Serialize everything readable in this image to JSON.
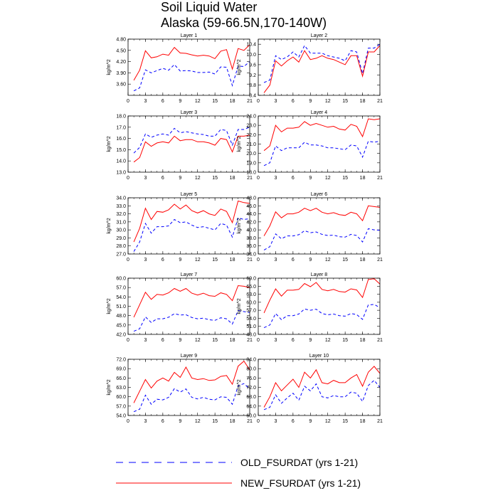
{
  "figure": {
    "title": "Soil Liquid Water",
    "subtitle": "Alaska (59-66.5N,170-140W)"
  },
  "legend": {
    "items": [
      {
        "label": "OLD_FSURDAT (yrs 1-21)",
        "color": "#0000ff",
        "dash": true
      },
      {
        "label": "NEW_FSURDAT (yrs 1-21)",
        "color": "#ff0000",
        "dash": false
      }
    ]
  },
  "chart_data": [
    {
      "type": "line",
      "title": "Layer 1",
      "ylabel": "kg/m^2",
      "x": [
        1,
        2,
        3,
        4,
        5,
        6,
        7,
        8,
        9,
        10,
        11,
        12,
        13,
        14,
        15,
        16,
        17,
        18,
        19,
        20,
        21
      ],
      "xlim": [
        0,
        21
      ],
      "xticks": [
        "0",
        "3",
        "6",
        "9",
        "12",
        "15",
        "18",
        "21"
      ],
      "ylim": [
        3.3,
        4.8
      ],
      "yticks": [
        "3.60",
        "3.90",
        "4.20",
        "4.50",
        "4.80"
      ],
      "series": [
        {
          "name": "OLD_FSURDAT (yrs 1-21)",
          "color": "#0000ff",
          "values": [
            3.42,
            3.5,
            3.98,
            3.9,
            3.96,
            4.02,
            3.97,
            4.12,
            3.95,
            3.96,
            3.95,
            3.91,
            3.91,
            3.92,
            3.87,
            4.06,
            4.05,
            3.56,
            4.08,
            4.07,
            4.2
          ]
        },
        {
          "name": "NEW_FSURDAT (yrs 1-21)",
          "color": "#ff0000",
          "values": [
            3.7,
            3.97,
            4.49,
            4.3,
            4.33,
            4.4,
            4.37,
            4.58,
            4.43,
            4.42,
            4.38,
            4.35,
            4.37,
            4.35,
            4.28,
            4.48,
            4.52,
            4.0,
            4.55,
            4.5,
            4.65
          ]
        }
      ]
    },
    {
      "type": "line",
      "title": "Layer 2",
      "ylabel": "kg/m^2",
      "x": [
        1,
        2,
        3,
        4,
        5,
        6,
        7,
        8,
        9,
        10,
        11,
        12,
        13,
        14,
        15,
        16,
        17,
        18,
        19,
        20,
        21
      ],
      "xlim": [
        0,
        21
      ],
      "xticks": [
        "0",
        "3",
        "6",
        "9",
        "12",
        "15",
        "18",
        "21"
      ],
      "ylim": [
        8.4,
        10.6
      ],
      "yticks": [
        "8.4",
        "8.8",
        "9.2",
        "9.6",
        "10.0",
        "10.4"
      ],
      "series": [
        {
          "name": "OLD_FSURDAT (yrs 1-21)",
          "color": "#0000ff",
          "values": [
            8.9,
            9.0,
            9.95,
            9.8,
            9.9,
            10.1,
            9.9,
            10.35,
            10.05,
            10.05,
            10.05,
            9.95,
            9.9,
            9.85,
            9.75,
            10.15,
            10.1,
            9.25,
            10.25,
            10.25,
            10.4
          ]
        },
        {
          "name": "NEW_FSURDAT (yrs 1-21)",
          "color": "#ff0000",
          "values": [
            8.5,
            8.8,
            9.75,
            9.55,
            9.75,
            9.9,
            9.7,
            10.15,
            9.8,
            9.85,
            9.95,
            9.85,
            9.8,
            9.7,
            9.6,
            9.95,
            9.95,
            9.15,
            10.1,
            10.1,
            10.35
          ]
        }
      ]
    },
    {
      "type": "line",
      "title": "Layer 3",
      "ylabel": "kg/m^2",
      "x": [
        1,
        2,
        3,
        4,
        5,
        6,
        7,
        8,
        9,
        10,
        11,
        12,
        13,
        14,
        15,
        16,
        17,
        18,
        19,
        20,
        21
      ],
      "xlim": [
        0,
        21
      ],
      "xticks": [
        "0",
        "3",
        "6",
        "9",
        "12",
        "15",
        "18",
        "21"
      ],
      "ylim": [
        13.0,
        18.0
      ],
      "yticks": [
        "13.0",
        "14.0",
        "15.0",
        "16.0",
        "17.0",
        "18.0"
      ],
      "series": [
        {
          "name": "OLD_FSURDAT (yrs 1-21)",
          "color": "#0000ff",
          "values": [
            14.7,
            15.2,
            16.4,
            16.1,
            16.3,
            16.4,
            16.3,
            16.9,
            16.5,
            16.6,
            16.5,
            16.4,
            16.35,
            16.2,
            16.2,
            16.8,
            16.7,
            15.4,
            16.8,
            16.8,
            17.0
          ]
        },
        {
          "name": "NEW_FSURDAT (yrs 1-21)",
          "color": "#ff0000",
          "values": [
            13.9,
            14.3,
            15.7,
            15.3,
            15.6,
            15.7,
            15.6,
            16.2,
            15.8,
            15.9,
            15.9,
            15.7,
            15.7,
            15.6,
            15.4,
            16.0,
            15.9,
            14.8,
            16.2,
            16.2,
            16.3
          ]
        }
      ]
    },
    {
      "type": "line",
      "title": "Layer 4",
      "ylabel": "kg/m^2",
      "x": [
        1,
        2,
        3,
        4,
        5,
        6,
        7,
        8,
        9,
        10,
        11,
        12,
        13,
        14,
        15,
        16,
        17,
        18,
        19,
        20,
        21
      ],
      "xlim": [
        0,
        21
      ],
      "xticks": [
        "0",
        "3",
        "6",
        "9",
        "12",
        "15",
        "18",
        "21"
      ],
      "ylim": [
        18.0,
        24.0
      ],
      "yticks": [
        "18.0",
        "19.0",
        "20.0",
        "21.0",
        "22.0",
        "23.0",
        "24.0"
      ],
      "series": [
        {
          "name": "OLD_FSURDAT (yrs 1-21)",
          "color": "#0000ff",
          "values": [
            18.7,
            19.0,
            20.8,
            20.3,
            20.6,
            20.6,
            20.6,
            21.2,
            20.9,
            20.9,
            20.8,
            20.6,
            20.6,
            20.5,
            20.4,
            20.9,
            20.8,
            19.6,
            21.3,
            21.2,
            21.3
          ]
        },
        {
          "name": "NEW_FSURDAT (yrs 1-21)",
          "color": "#ff0000",
          "values": [
            20.3,
            20.8,
            23.0,
            22.3,
            22.7,
            22.7,
            22.8,
            23.4,
            23.0,
            23.2,
            23.0,
            22.8,
            22.9,
            22.6,
            22.5,
            23.1,
            22.9,
            21.8,
            23.7,
            23.6,
            23.7
          ]
        }
      ]
    },
    {
      "type": "line",
      "title": "Layer 5",
      "ylabel": "kg/m^2",
      "x": [
        1,
        2,
        3,
        4,
        5,
        6,
        7,
        8,
        9,
        10,
        11,
        12,
        13,
        14,
        15,
        16,
        17,
        18,
        19,
        20,
        21
      ],
      "xlim": [
        0,
        21
      ],
      "xticks": [
        "0",
        "3",
        "6",
        "9",
        "12",
        "15",
        "18",
        "21"
      ],
      "ylim": [
        27.0,
        34.0
      ],
      "yticks": [
        "27.0",
        "28.0",
        "29.0",
        "30.0",
        "31.0",
        "32.0",
        "33.0",
        "34.0"
      ],
      "series": [
        {
          "name": "OLD_FSURDAT (yrs 1-21)",
          "color": "#0000ff",
          "values": [
            27.3,
            28.5,
            30.8,
            29.6,
            30.4,
            30.4,
            30.5,
            31.3,
            30.9,
            31.0,
            30.6,
            30.3,
            30.4,
            30.2,
            30.0,
            30.8,
            30.6,
            29.1,
            31.5,
            31.3,
            31.4
          ]
        },
        {
          "name": "NEW_FSURDAT (yrs 1-21)",
          "color": "#ff0000",
          "values": [
            28.5,
            30.2,
            32.7,
            31.3,
            32.3,
            32.2,
            32.5,
            33.2,
            32.6,
            33.1,
            32.4,
            32.1,
            32.4,
            32.0,
            31.8,
            32.6,
            32.3,
            30.9,
            33.6,
            33.4,
            33.3
          ]
        }
      ]
    },
    {
      "type": "line",
      "title": "Layer 6",
      "ylabel": "kg/m^2",
      "x": [
        1,
        2,
        3,
        4,
        5,
        6,
        7,
        8,
        9,
        10,
        11,
        12,
        13,
        14,
        15,
        16,
        17,
        18,
        19,
        20,
        21
      ],
      "xlim": [
        0,
        21
      ],
      "xticks": [
        "0",
        "3",
        "6",
        "9",
        "12",
        "15",
        "18",
        "21"
      ],
      "ylim": [
        34.0,
        48.0
      ],
      "yticks": [
        "34.0",
        "36.0",
        "38.0",
        "40.0",
        "42.0",
        "44.0",
        "46.0",
        "48.0"
      ],
      "series": [
        {
          "name": "OLD_FSURDAT (yrs 1-21)",
          "color": "#0000ff",
          "values": [
            35.0,
            35.8,
            39.0,
            37.8,
            38.5,
            38.5,
            38.8,
            39.8,
            39.3,
            39.5,
            38.9,
            38.6,
            38.7,
            38.3,
            38.2,
            38.9,
            38.6,
            37.0,
            40.3,
            40.0,
            39.9
          ]
        },
        {
          "name": "NEW_FSURDAT (yrs 1-21)",
          "color": "#ff0000",
          "values": [
            38.5,
            41.0,
            44.5,
            43.0,
            44.0,
            44.0,
            44.4,
            45.4,
            44.8,
            45.4,
            44.4,
            44.0,
            44.3,
            43.8,
            43.6,
            44.4,
            44.0,
            42.3,
            46.0,
            45.8,
            45.6
          ]
        }
      ]
    },
    {
      "type": "line",
      "title": "Layer 7",
      "ylabel": "kg/m^2",
      "x": [
        1,
        2,
        3,
        4,
        5,
        6,
        7,
        8,
        9,
        10,
        11,
        12,
        13,
        14,
        15,
        16,
        17,
        18,
        19,
        20,
        21
      ],
      "xlim": [
        0,
        21
      ],
      "xticks": [
        "0",
        "3",
        "6",
        "9",
        "12",
        "15",
        "18",
        "21"
      ],
      "ylim": [
        42.0,
        60.0
      ],
      "yticks": [
        "42.0",
        "45.0",
        "48.0",
        "51.0",
        "54.0",
        "57.0",
        "60.0"
      ],
      "series": [
        {
          "name": "OLD_FSURDAT (yrs 1-21)",
          "color": "#0000ff",
          "values": [
            43.0,
            43.8,
            47.6,
            45.8,
            47.0,
            47.0,
            47.5,
            48.6,
            48.2,
            48.3,
            47.4,
            47.0,
            47.2,
            46.7,
            46.5,
            47.3,
            47.0,
            45.3,
            49.6,
            49.3,
            49.0
          ]
        },
        {
          "name": "NEW_FSURDAT (yrs 1-21)",
          "color": "#ff0000",
          "values": [
            47.5,
            51.5,
            55.5,
            53.2,
            54.8,
            54.6,
            55.3,
            56.7,
            55.8,
            56.7,
            55.2,
            54.6,
            55.2,
            54.4,
            54.2,
            55.3,
            54.8,
            52.8,
            57.6,
            57.4,
            57.0
          ]
        }
      ]
    },
    {
      "type": "line",
      "title": "Layer 8",
      "ylabel": "kg/m^2",
      "x": [
        1,
        2,
        3,
        4,
        5,
        6,
        7,
        8,
        9,
        10,
        11,
        12,
        13,
        14,
        15,
        16,
        17,
        18,
        19,
        20,
        21
      ],
      "xlim": [
        0,
        21
      ],
      "xticks": [
        "0",
        "3",
        "6",
        "9",
        "12",
        "15",
        "18",
        "21"
      ],
      "ylim": [
        48.0,
        69.0
      ],
      "yticks": [
        "48.0",
        "51.0",
        "54.0",
        "57.0",
        "60.0",
        "63.0",
        "66.0",
        "69.0"
      ],
      "series": [
        {
          "name": "OLD_FSURDAT (yrs 1-21)",
          "color": "#0000ff",
          "values": [
            50.5,
            51.5,
            55.8,
            53.5,
            55.0,
            55.0,
            55.6,
            57.5,
            57.0,
            57.4,
            55.8,
            55.3,
            55.6,
            55.0,
            54.8,
            55.8,
            55.4,
            53.6,
            59.0,
            59.2,
            58.0
          ]
        },
        {
          "name": "NEW_FSURDAT (yrs 1-21)",
          "color": "#ff0000",
          "values": [
            56.0,
            60.8,
            65.0,
            62.3,
            64.5,
            64.5,
            64.8,
            67.0,
            65.8,
            67.4,
            64.8,
            64.3,
            64.8,
            64.0,
            63.8,
            65.0,
            64.6,
            61.8,
            68.5,
            68.8,
            66.8
          ]
        }
      ]
    },
    {
      "type": "line",
      "title": "Layer 9",
      "ylabel": "kg/m^2",
      "x": [
        1,
        2,
        3,
        4,
        5,
        6,
        7,
        8,
        9,
        10,
        11,
        12,
        13,
        14,
        15,
        16,
        17,
        18,
        19,
        20,
        21
      ],
      "xlim": [
        0,
        21
      ],
      "xticks": [
        "0",
        "3",
        "6",
        "9",
        "12",
        "15",
        "18",
        "21"
      ],
      "ylim": [
        54.0,
        72.0
      ],
      "yticks": [
        "54.0",
        "57.0",
        "60.0",
        "63.0",
        "66.0",
        "69.0",
        "72.0"
      ],
      "series": [
        {
          "name": "OLD_FSURDAT (yrs 1-21)",
          "color": "#0000ff",
          "values": [
            55.2,
            56.0,
            60.5,
            57.6,
            59.2,
            59.0,
            59.8,
            62.6,
            61.5,
            62.5,
            59.8,
            59.3,
            59.8,
            59.2,
            59.0,
            60.0,
            59.8,
            57.6,
            63.5,
            64.2,
            62.5
          ]
        },
        {
          "name": "NEW_FSURDAT (yrs 1-21)",
          "color": "#ff0000",
          "values": [
            58.0,
            61.8,
            65.5,
            62.8,
            65.0,
            66.0,
            65.0,
            67.8,
            66.2,
            69.5,
            66.0,
            65.5,
            65.8,
            65.2,
            65.4,
            66.5,
            66.8,
            64.0,
            69.8,
            71.4,
            68.6
          ]
        }
      ]
    },
    {
      "type": "line",
      "title": "Layer 10",
      "ylabel": "kg/m^2",
      "x": [
        1,
        2,
        3,
        4,
        5,
        6,
        7,
        8,
        9,
        10,
        11,
        12,
        13,
        14,
        15,
        16,
        17,
        18,
        19,
        20,
        21
      ],
      "xlim": [
        0,
        21
      ],
      "xticks": [
        "0",
        "3",
        "6",
        "9",
        "12",
        "15",
        "18",
        "21"
      ],
      "ylim": [
        60.0,
        84.0
      ],
      "yticks": [
        "60.0",
        "64.0",
        "68.0",
        "72.0",
        "76.0",
        "80.0",
        "84.0"
      ],
      "series": [
        {
          "name": "OLD_FSURDAT (yrs 1-21)",
          "color": "#0000ff",
          "values": [
            62.5,
            63.5,
            68.8,
            65.2,
            67.5,
            69.5,
            66.5,
            72.5,
            70.5,
            73.5,
            68.0,
            67.5,
            68.5,
            68.0,
            68.0,
            70.0,
            69.5,
            66.0,
            72.8,
            75.0,
            72.0
          ]
        },
        {
          "name": "NEW_FSURDAT (yrs 1-21)",
          "color": "#ff0000",
          "values": [
            63.5,
            68.0,
            74.0,
            70.5,
            73.0,
            75.5,
            72.0,
            78.5,
            76.0,
            79.5,
            74.0,
            73.5,
            75.0,
            74.0,
            74.0,
            76.0,
            77.5,
            72.5,
            78.5,
            81.0,
            78.0
          ]
        }
      ]
    }
  ]
}
